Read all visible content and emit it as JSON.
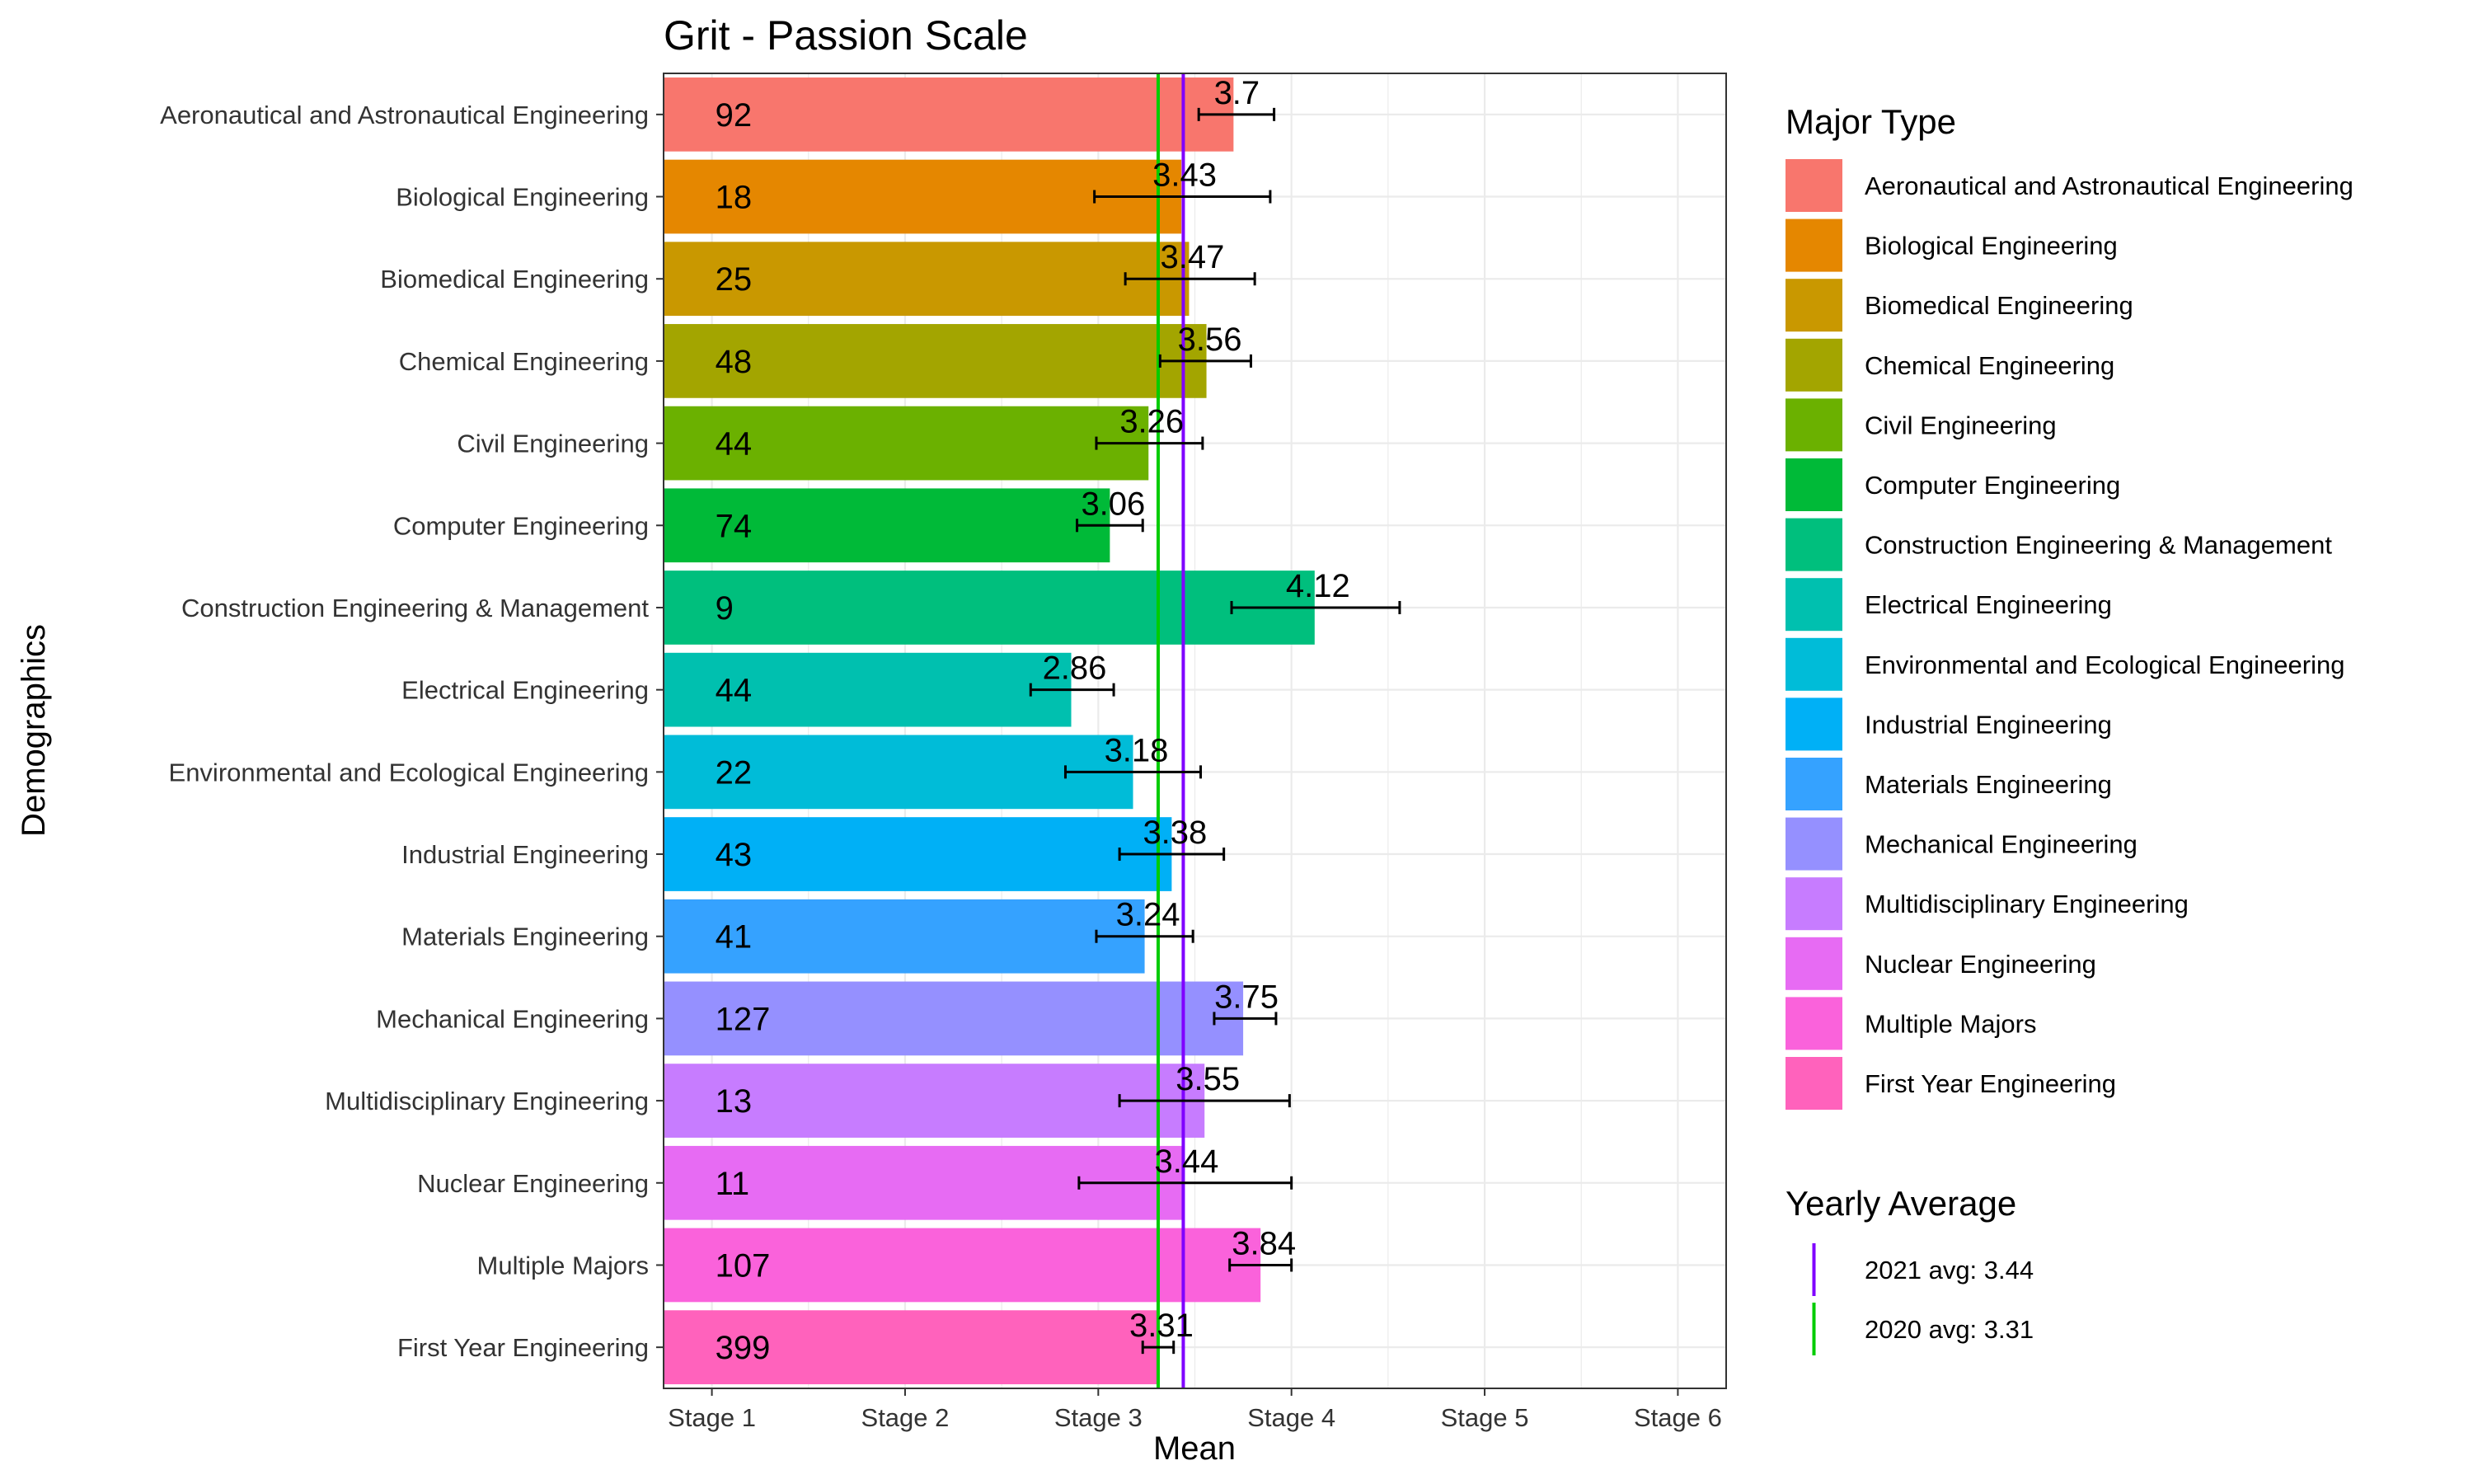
{
  "chart_data": {
    "type": "bar",
    "orientation": "horizontal",
    "title": "Grit - Passion Scale",
    "xlabel": "Mean",
    "ylabel": "Demographics",
    "xlim": [
      0.75,
      6.25
    ],
    "x_ticks": [
      {
        "value": 1,
        "label": "Stage 1"
      },
      {
        "value": 2,
        "label": "Stage 2"
      },
      {
        "value": 3,
        "label": "Stage 3"
      },
      {
        "value": 4,
        "label": "Stage 4"
      },
      {
        "value": 5,
        "label": "Stage 5"
      },
      {
        "value": 6,
        "label": "Stage 6"
      }
    ],
    "grid": true,
    "legend_position": "right",
    "legend_title": "Major Type",
    "categories": [
      {
        "name": "Aeronautical and Astronautical Engineering",
        "mean": 3.7,
        "label": "3.7",
        "n": "92",
        "err_low": 3.52,
        "err_high": 3.91,
        "color": "#F8766D"
      },
      {
        "name": "Biological Engineering",
        "mean": 3.43,
        "label": "3.43",
        "n": "18",
        "err_low": 2.98,
        "err_high": 3.89,
        "color": "#E58700"
      },
      {
        "name": "Biomedical Engineering",
        "mean": 3.47,
        "label": "3.47",
        "n": "25",
        "err_low": 3.14,
        "err_high": 3.81,
        "color": "#C99800"
      },
      {
        "name": "Chemical Engineering",
        "mean": 3.56,
        "label": "3.56",
        "n": "48",
        "err_low": 3.32,
        "err_high": 3.79,
        "color": "#A3A500"
      },
      {
        "name": "Civil Engineering",
        "mean": 3.26,
        "label": "3.26",
        "n": "44",
        "err_low": 2.99,
        "err_high": 3.54,
        "color": "#6BB100"
      },
      {
        "name": "Computer Engineering",
        "mean": 3.06,
        "label": "3.06",
        "n": "74",
        "err_low": 2.89,
        "err_high": 3.23,
        "color": "#00BA38"
      },
      {
        "name": "Construction Engineering & Management",
        "mean": 4.12,
        "label": "4.12",
        "n": "9",
        "err_low": 3.69,
        "err_high": 4.56,
        "color": "#00BF7D"
      },
      {
        "name": "Electrical Engineering",
        "mean": 2.86,
        "label": "2.86",
        "n": "44",
        "err_low": 2.65,
        "err_high": 3.08,
        "color": "#00C0AF"
      },
      {
        "name": "Environmental and Ecological Engineering",
        "mean": 3.18,
        "label": "3.18",
        "n": "22",
        "err_low": 2.83,
        "err_high": 3.53,
        "color": "#00BCD8"
      },
      {
        "name": "Industrial Engineering",
        "mean": 3.38,
        "label": "3.38",
        "n": "43",
        "err_low": 3.11,
        "err_high": 3.65,
        "color": "#00B0F6"
      },
      {
        "name": "Materials Engineering",
        "mean": 3.24,
        "label": "3.24",
        "n": "41",
        "err_low": 2.99,
        "err_high": 3.49,
        "color": "#35A2FF"
      },
      {
        "name": "Mechanical Engineering",
        "mean": 3.75,
        "label": "3.75",
        "n": "127",
        "err_low": 3.6,
        "err_high": 3.92,
        "color": "#9590FF"
      },
      {
        "name": "Multidisciplinary Engineering",
        "mean": 3.55,
        "label": "3.55",
        "n": "13",
        "err_low": 3.11,
        "err_high": 3.99,
        "color": "#C77CFF"
      },
      {
        "name": "Nuclear Engineering",
        "mean": 3.44,
        "label": "3.44",
        "n": "11",
        "err_low": 2.9,
        "err_high": 4.0,
        "color": "#E76BF3"
      },
      {
        "name": "Multiple Majors",
        "mean": 3.84,
        "label": "3.84",
        "n": "107",
        "err_low": 3.68,
        "err_high": 4.0,
        "color": "#FA62DB"
      },
      {
        "name": "First Year Engineering",
        "mean": 3.31,
        "label": "3.31",
        "n": "399",
        "err_low": 3.23,
        "err_high": 3.39,
        "color": "#FF62BC"
      }
    ],
    "reference_lines": [
      {
        "name": "2021 avg",
        "value": 3.44,
        "label": "2021 avg: 3.44",
        "color": "#7F00FF"
      },
      {
        "name": "2020 avg",
        "value": 3.31,
        "label": "2020 avg: 3.31",
        "color": "#00CC00"
      }
    ],
    "reference_legend_title": "Yearly Average"
  }
}
